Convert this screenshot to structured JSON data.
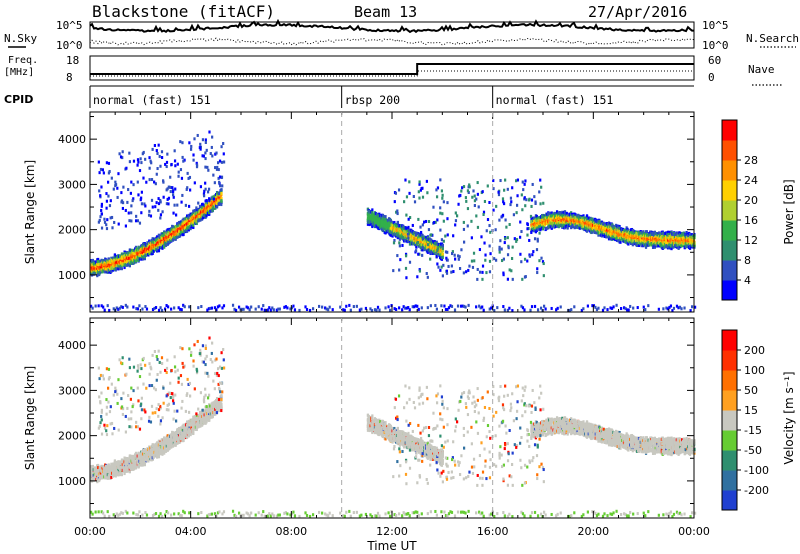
{
  "header": {
    "station": "Blackstone (fitACF)",
    "beam": "Beam 13",
    "date": "27/Apr/2016"
  },
  "noise_panel": {
    "left_label": "N.Sky",
    "right_label": "N.Search",
    "ticks_left": [
      "10^5",
      "10^0"
    ],
    "ticks_right": [
      "10^5",
      "10^0"
    ]
  },
  "freq_panel": {
    "left_label_line1": "Freq.",
    "left_label_line2": "[MHz]",
    "right_label": "Nave",
    "ticks_left": [
      "18",
      "8"
    ],
    "ticks_right": [
      "60",
      "0"
    ]
  },
  "cpid": {
    "label": "CPID",
    "segments": [
      {
        "label": "normal (fast) 151",
        "start_hour": 0
      },
      {
        "label": "rbsp 200",
        "start_hour": 10
      },
      {
        "label": "normal (fast) 151",
        "start_hour": 16
      }
    ]
  },
  "time_axis": {
    "title": "Time UT",
    "ticks": [
      "00:00",
      "04:00",
      "08:00",
      "12:00",
      "16:00",
      "20:00",
      "00:00"
    ]
  },
  "power_panel": {
    "ylabel": "Slant Range [km]",
    "yticks": [
      "1000",
      "2000",
      "3000",
      "4000"
    ],
    "colorbar_label": "Power [dB]",
    "colorbar_ticks": [
      "4",
      "8",
      "12",
      "16",
      "20",
      "24",
      "28"
    ],
    "colors": [
      "#0000ff",
      "#3050c0",
      "#2f8f6f",
      "#33b04a",
      "#b0d030",
      "#ffd000",
      "#ff9000",
      "#ff5000",
      "#ff0000"
    ]
  },
  "velocity_panel": {
    "ylabel": "Slant Range [km]",
    "yticks": [
      "1000",
      "2000",
      "3000",
      "4000"
    ],
    "colorbar_label": "Velocity [m s⁻¹]",
    "colorbar_ticks": [
      "200",
      "100",
      "50",
      "15",
      "-15",
      "-50",
      "-100",
      "-200"
    ],
    "colors": [
      "#2040d0",
      "#3070a0",
      "#2f8f6f",
      "#66cc33",
      "#c8c8c0",
      "#ffa020",
      "#ff7000",
      "#ff3000",
      "#ff0000"
    ],
    "ground_scatter_color": "#c8c8c0"
  },
  "chart_data": {
    "type": "heatmap",
    "x_range_hours": [
      0,
      24
    ],
    "y_range_km": [
      180,
      4600
    ],
    "scatter_regions": [
      {
        "name": "early-arc",
        "start_hour": 0.0,
        "end_hour": 5.2,
        "range_start_km": 1150,
        "range_end_km": 2750,
        "peak_power_db": 28
      },
      {
        "name": "midday-patch",
        "start_hour": 11.0,
        "end_hour": 14.0,
        "range_start_km": 2300,
        "range_end_km": 1500,
        "peak_power_db": 22
      },
      {
        "name": "evening-band",
        "start_hour": 17.5,
        "end_hour": 24.0,
        "range_start_km": 2100,
        "range_end_km": 1750,
        "peak_power_db": 26
      }
    ]
  }
}
